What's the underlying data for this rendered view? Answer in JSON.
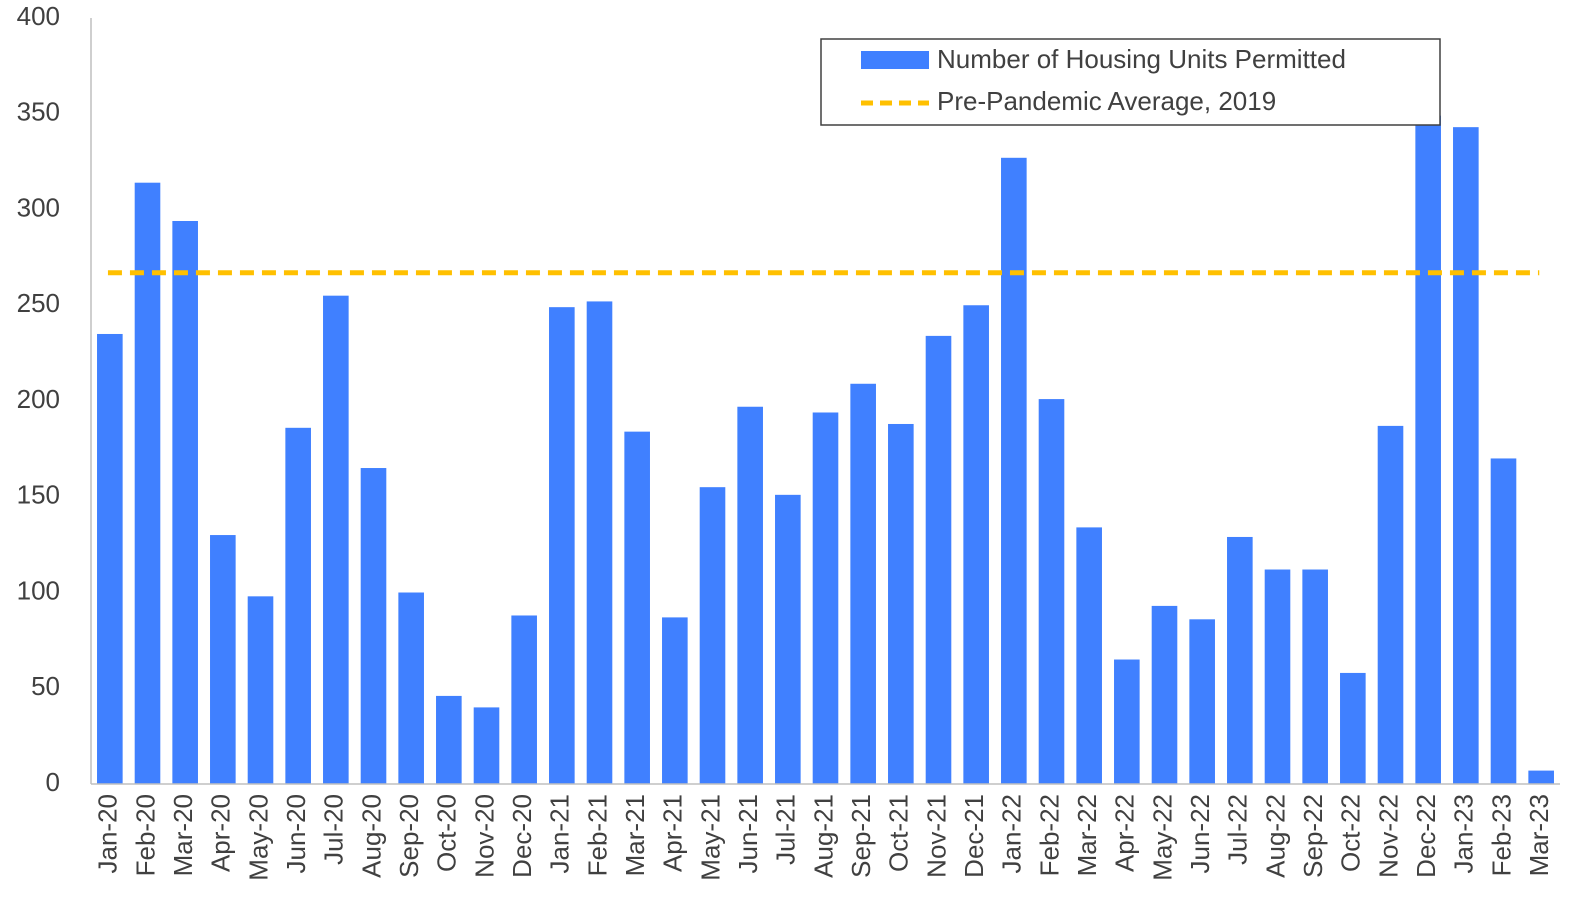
{
  "chart_data": {
    "type": "bar",
    "categories": [
      "Jan-20",
      "Feb-20",
      "Mar-20",
      "Apr-20",
      "May-20",
      "Jun-20",
      "Jul-20",
      "Aug-20",
      "Sep-20",
      "Oct-20",
      "Nov-20",
      "Dec-20",
      "Jan-21",
      "Feb-21",
      "Mar-21",
      "Apr-21",
      "May-21",
      "Jun-21",
      "Jul-21",
      "Aug-21",
      "Sep-21",
      "Oct-21",
      "Nov-21",
      "Dec-21",
      "Jan-22",
      "Feb-22",
      "Mar-22",
      "Apr-22",
      "May-22",
      "Jun-22",
      "Jul-22",
      "Aug-22",
      "Sep-22",
      "Oct-22",
      "Nov-22",
      "Dec-22",
      "Jan-23",
      "Feb-23",
      "Mar-23"
    ],
    "series": [
      {
        "name": "Number of Housing Units Permitted",
        "color": "#4080ff",
        "values": [
          235,
          314,
          294,
          130,
          98,
          186,
          255,
          165,
          100,
          46,
          40,
          88,
          249,
          252,
          184,
          87,
          155,
          197,
          151,
          194,
          209,
          188,
          234,
          250,
          327,
          201,
          134,
          65,
          93,
          86,
          129,
          112,
          112,
          58,
          187,
          349,
          343,
          170,
          7
        ]
      }
    ],
    "reference_line": {
      "name": "Pre-Pandemic Average, 2019",
      "value": 267,
      "color": "#ffc000",
      "dashed": true
    },
    "ylim": [
      0,
      400
    ],
    "yticks": [
      0,
      50,
      100,
      150,
      200,
      250,
      300,
      350,
      400
    ],
    "grid": false,
    "legend": "top-right"
  }
}
